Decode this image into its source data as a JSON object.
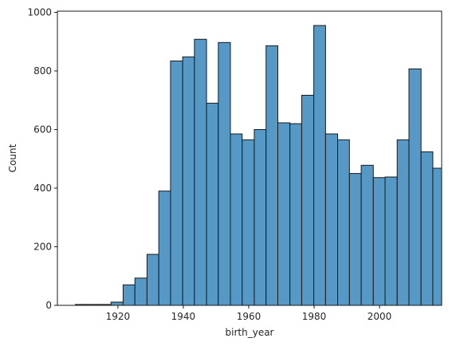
{
  "chart_data": {
    "type": "bar",
    "title": "",
    "xlabel": "birth_year",
    "ylabel": "Count",
    "bar_color": "#5799c6",
    "edge_color": "#1a1a1a",
    "xlim": [
      1901.5,
      2019.0
    ],
    "ylim": [
      0,
      1004
    ],
    "xticks": [
      1920,
      1940,
      1960,
      1980,
      2000
    ],
    "yticks": [
      0,
      200,
      400,
      600,
      800,
      1000
    ],
    "bins": [
      {
        "x0": 1907.0,
        "x1": 1910.6,
        "value": 3
      },
      {
        "x0": 1910.6,
        "x1": 1914.3,
        "value": 3
      },
      {
        "x0": 1914.3,
        "x1": 1917.9,
        "value": 3
      },
      {
        "x0": 1917.9,
        "x1": 1921.6,
        "value": 11
      },
      {
        "x0": 1921.6,
        "x1": 1925.2,
        "value": 70
      },
      {
        "x0": 1925.2,
        "x1": 1928.9,
        "value": 93
      },
      {
        "x0": 1928.9,
        "x1": 1932.5,
        "value": 174
      },
      {
        "x0": 1932.5,
        "x1": 1936.1,
        "value": 390
      },
      {
        "x0": 1936.1,
        "x1": 1939.8,
        "value": 834
      },
      {
        "x0": 1939.8,
        "x1": 1943.4,
        "value": 848
      },
      {
        "x0": 1943.4,
        "x1": 1947.1,
        "value": 908
      },
      {
        "x0": 1947.1,
        "x1": 1950.7,
        "value": 690
      },
      {
        "x0": 1950.7,
        "x1": 1954.4,
        "value": 897
      },
      {
        "x0": 1954.4,
        "x1": 1958.0,
        "value": 585
      },
      {
        "x0": 1958.0,
        "x1": 1961.7,
        "value": 565
      },
      {
        "x0": 1961.7,
        "x1": 1965.3,
        "value": 600
      },
      {
        "x0": 1965.3,
        "x1": 1968.9,
        "value": 886
      },
      {
        "x0": 1968.9,
        "x1": 1972.6,
        "value": 623
      },
      {
        "x0": 1972.6,
        "x1": 1976.2,
        "value": 620
      },
      {
        "x0": 1976.2,
        "x1": 1979.9,
        "value": 717
      },
      {
        "x0": 1979.9,
        "x1": 1983.5,
        "value": 955
      },
      {
        "x0": 1983.5,
        "x1": 1987.2,
        "value": 585
      },
      {
        "x0": 1987.2,
        "x1": 1990.8,
        "value": 565
      },
      {
        "x0": 1990.8,
        "x1": 1994.4,
        "value": 450
      },
      {
        "x0": 1994.4,
        "x1": 1998.1,
        "value": 478
      },
      {
        "x0": 1998.1,
        "x1": 2001.7,
        "value": 436
      },
      {
        "x0": 2001.7,
        "x1": 2005.4,
        "value": 438
      },
      {
        "x0": 2005.4,
        "x1": 2009.0,
        "value": 565
      },
      {
        "x0": 2009.0,
        "x1": 2012.7,
        "value": 807
      },
      {
        "x0": 2012.7,
        "x1": 2016.3,
        "value": 524
      },
      {
        "x0": 2016.3,
        "x1": 2019.0,
        "value": 468
      }
    ]
  }
}
